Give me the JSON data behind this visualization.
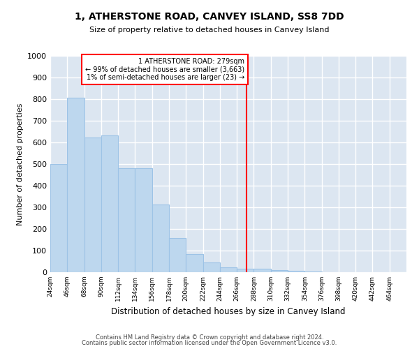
{
  "title": "1, ATHERSTONE ROAD, CANVEY ISLAND, SS8 7DD",
  "subtitle": "Size of property relative to detached houses in Canvey Island",
  "xlabel": "Distribution of detached houses by size in Canvey Island",
  "ylabel": "Number of detached properties",
  "footer1": "Contains HM Land Registry data © Crown copyright and database right 2024.",
  "footer2": "Contains public sector information licensed under the Open Government Licence v3.0.",
  "annotation_line1": "1 ATHERSTONE ROAD: 279sqm",
  "annotation_line2": "← 99% of detached houses are smaller (3,663)",
  "annotation_line3": "1% of semi-detached houses are larger (23) →",
  "property_size": 279,
  "bar_color": "#bdd7ee",
  "bar_edge_color": "#9dc3e6",
  "vline_color": "red",
  "background_color": "#dce6f1",
  "bins": [
    24,
    46,
    68,
    90,
    112,
    134,
    156,
    178,
    200,
    222,
    244,
    266,
    288,
    310,
    332,
    354,
    376,
    398,
    420,
    442,
    464
  ],
  "values": [
    500,
    808,
    622,
    633,
    480,
    480,
    312,
    158,
    83,
    44,
    22,
    17,
    15,
    10,
    5,
    3,
    1,
    1,
    0,
    0
  ],
  "ylim": [
    0,
    1000
  ],
  "yticks": [
    0,
    100,
    200,
    300,
    400,
    500,
    600,
    700,
    800,
    900,
    1000
  ],
  "figsize": [
    6.0,
    5.0
  ],
  "dpi": 100
}
